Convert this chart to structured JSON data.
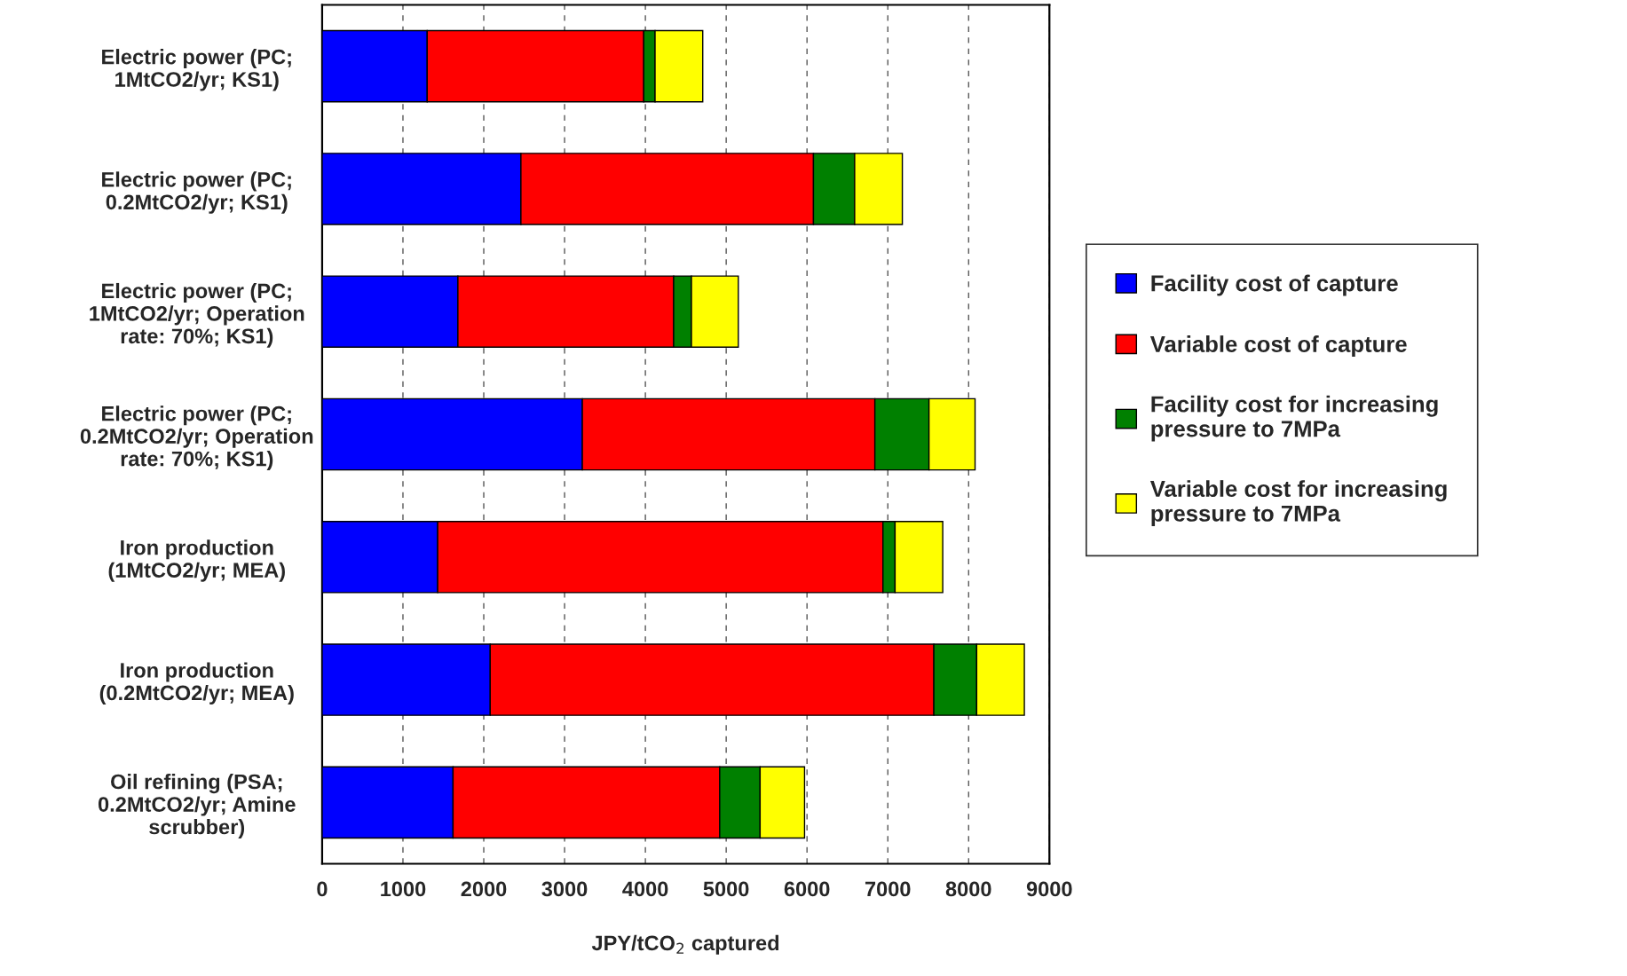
{
  "chart_data": {
    "type": "bar",
    "orientation": "horizontal",
    "stacked": true,
    "xlabel": "JPY/tCO$_{2}$ captured",
    "categories": [
      "Electric power (PC;\n1MtCO2/yr; KS1)",
      "Electric power (PC;\n0.2MtCO2/yr; KS1)",
      "Electric power (PC;\n1MtCO2/yr; Operation\nrate: 70%; KS1)",
      "Electric power (PC;\n0.2MtCO2/yr; Operation\nrate: 70%; KS1)",
      "Iron production\n(1MtCO2/yr; MEA)",
      "Iron production\n(0.2MtCO2/yr; MEA)",
      "Oil refining (PSA;\n0.2MtCO2/yr; Amine\nscrubber)"
    ],
    "series": [
      {
        "name": "Facility cost of capture",
        "color": "#0000ff",
        "values": [
          1300,
          2460,
          1680,
          3220,
          1430,
          2080,
          1620
        ]
      },
      {
        "name": "Variable cost of capture",
        "color": "#ff0000",
        "values": [
          2680,
          3620,
          2670,
          3620,
          5510,
          5490,
          3300
        ]
      },
      {
        "name": "Facility cost for increasing\npressure to 7MPa",
        "color": "#008000",
        "values": [
          140,
          510,
          220,
          670,
          150,
          530,
          500
        ]
      },
      {
        "name": "Variable cost for increasing\npressure to 7MPa",
        "color": "#ffff00",
        "values": [
          590,
          590,
          580,
          570,
          590,
          590,
          550
        ]
      }
    ],
    "xlim": [
      0,
      9000
    ],
    "xticks": [
      0,
      1000,
      2000,
      3000,
      4000,
      5000,
      6000,
      7000,
      8000,
      9000
    ],
    "grid": "x",
    "legend": "right"
  }
}
